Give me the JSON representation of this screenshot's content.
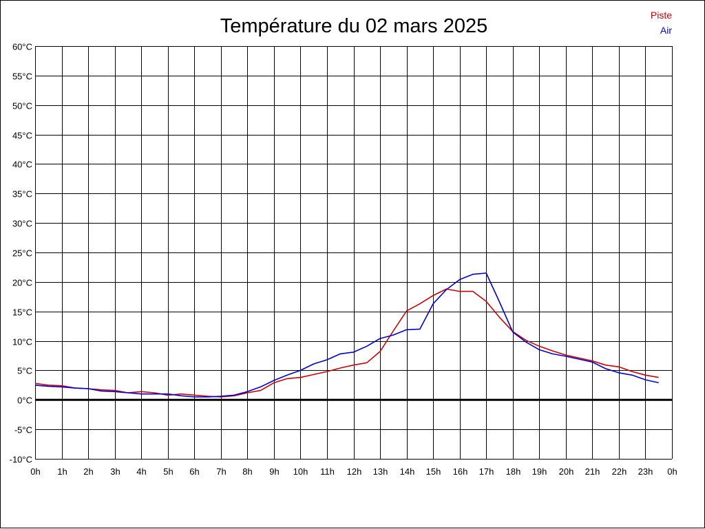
{
  "chart_data": {
    "type": "line",
    "title": "Température du 02 mars 2025",
    "ylim": [
      -10,
      60
    ],
    "y_step": 5,
    "y_unit": "°C",
    "y_ticks": [
      "60°C",
      "55°C",
      "50°C",
      "45°C",
      "40°C",
      "35°C",
      "30°C",
      "25°C",
      "20°C",
      "15°C",
      "10°C",
      "5°C",
      "0°C",
      "-5°C",
      "-10°C"
    ],
    "xlim": [
      0,
      24
    ],
    "x_ticks": [
      "0h",
      "1h",
      "2h",
      "3h",
      "4h",
      "5h",
      "6h",
      "7h",
      "8h",
      "9h",
      "10h",
      "11h",
      "12h",
      "13h",
      "14h",
      "15h",
      "16h",
      "17h",
      "18h",
      "19h",
      "20h",
      "21h",
      "22h",
      "23h",
      "0h"
    ],
    "grid": true,
    "zero_line": true,
    "legend": "top-right",
    "series": [
      {
        "name": "Piste",
        "color": "#cc0000",
        "x": [
          0,
          0.5,
          1,
          1.5,
          2,
          2.5,
          3,
          3.5,
          4,
          4.5,
          5,
          5.5,
          6,
          6.5,
          7,
          7.5,
          8,
          8.5,
          9,
          9.5,
          10,
          10.5,
          11,
          11.5,
          12,
          12.5,
          13,
          13.5,
          14,
          14.5,
          15,
          15.5,
          16,
          16.5,
          17,
          17.5,
          18,
          18.5,
          19,
          19.5,
          20,
          20.5,
          21,
          21.5,
          22,
          22.5,
          23,
          23.5
        ],
        "values": [
          2.8,
          2.5,
          2.4,
          2.0,
          1.9,
          1.7,
          1.6,
          1.2,
          1.4,
          1.2,
          0.8,
          1.0,
          0.8,
          0.6,
          0.5,
          0.7,
          1.2,
          1.6,
          2.9,
          3.6,
          3.8,
          4.3,
          4.8,
          5.4,
          5.9,
          6.3,
          8.2,
          11.7,
          15.1,
          16.3,
          17.7,
          18.8,
          18.4,
          18.4,
          16.7,
          14.0,
          11.6,
          10.1,
          9.1,
          8.3,
          7.6,
          7.1,
          6.6,
          5.9,
          5.6,
          4.8,
          4.2,
          3.8
        ]
      },
      {
        "name": "Air",
        "color": "#0000cc",
        "x": [
          0,
          0.5,
          1,
          1.5,
          2,
          2.5,
          3,
          3.5,
          4,
          4.5,
          5,
          5.5,
          6,
          6.5,
          7,
          7.5,
          8,
          8.5,
          9,
          9.5,
          10,
          10.5,
          11,
          11.5,
          12,
          12.5,
          13,
          13.5,
          14,
          14.5,
          15,
          15.5,
          16,
          16.5,
          17,
          17.5,
          18,
          18.5,
          19,
          19.5,
          20,
          20.5,
          21,
          21.5,
          22,
          22.5,
          23,
          23.5
        ],
        "values": [
          2.5,
          2.3,
          2.2,
          2.0,
          1.9,
          1.5,
          1.4,
          1.2,
          1.0,
          1.0,
          1.0,
          0.7,
          0.5,
          0.5,
          0.6,
          0.8,
          1.4,
          2.2,
          3.3,
          4.2,
          5.0,
          6.1,
          6.8,
          7.8,
          8.1,
          9.1,
          10.4,
          11.0,
          11.9,
          12.0,
          16.3,
          18.7,
          20.4,
          21.3,
          21.5,
          16.6,
          11.5,
          9.8,
          8.5,
          7.8,
          7.4,
          6.9,
          6.4,
          5.3,
          4.6,
          4.2,
          3.4,
          2.9
        ]
      }
    ]
  }
}
